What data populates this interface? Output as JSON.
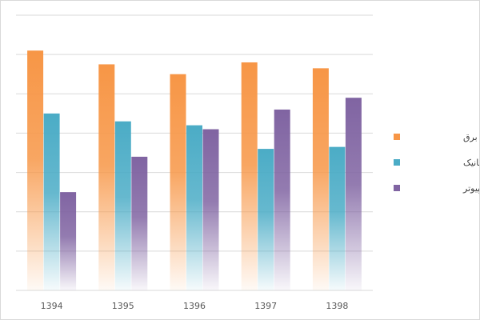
{
  "chart_data": {
    "type": "bar",
    "categories": [
      "1394",
      "1395",
      "1396",
      "1397",
      "1398"
    ],
    "series": [
      {
        "name": "مهندسی برق",
        "values": [
          61,
          57.5,
          55,
          58,
          56.5
        ],
        "color": "#F79646"
      },
      {
        "name": "مهندسی مکانیک",
        "values": [
          45,
          43,
          42,
          36,
          36.5
        ],
        "color": "#4BACC6"
      },
      {
        "name": "مهندسی کامپیوتر",
        "values": [
          25,
          34,
          41,
          46,
          49
        ],
        "color": "#8064A2"
      }
    ],
    "ylim": [
      0,
      70
    ],
    "ytick_step": 10,
    "y_tick_labels_visible": false,
    "grid": true,
    "legend_position": "right",
    "bar_style": "gradient-fade-to-bottom"
  }
}
